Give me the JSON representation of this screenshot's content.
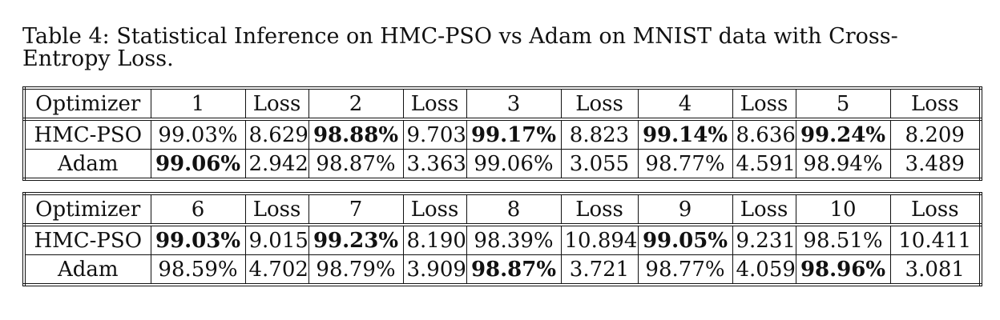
{
  "caption": "Table 4: Statistical Inference on HMC-PSO vs Adam on MNIST data with Cross-Entropy Loss.",
  "table1": {
    "header": [
      "Optimizer",
      "1",
      "Loss",
      "2",
      "Loss",
      "3",
      "Loss",
      "4",
      "Loss",
      "5",
      "Loss"
    ],
    "rows": [
      [
        "HMC-PSO",
        "99.03%",
        "8.629",
        "98.88%",
        "9.703",
        "99.17%",
        "8.823",
        "99.14%",
        "8.636",
        "99.24%",
        "8.209"
      ],
      [
        "Adam",
        "99.06%",
        "2.942",
        "98.87%",
        "3.363",
        "99.06%",
        "3.055",
        "98.77%",
        "4.591",
        "98.94%",
        "3.489"
      ]
    ],
    "bold": [
      [
        3,
        5,
        7,
        9
      ],
      [
        1
      ]
    ]
  },
  "table2": {
    "header": [
      "Optimizer",
      "6",
      "Loss",
      "7",
      "Loss",
      "8",
      "Loss",
      "9",
      "Loss",
      "10",
      "Loss"
    ],
    "rows": [
      [
        "HMC-PSO",
        "99.03%",
        "9.015",
        "99.23%",
        "8.190",
        "98.39%",
        "10.894",
        "99.05%",
        "9.231",
        "98.51%",
        "10.411"
      ],
      [
        "Adam",
        "98.59%",
        "4.702",
        "98.79%",
        "3.909",
        "98.87%",
        "3.721",
        "98.77%",
        "4.059",
        "98.96%",
        "3.081"
      ]
    ],
    "bold": [
      [
        1,
        3,
        7
      ],
      [
        5,
        9
      ]
    ]
  }
}
